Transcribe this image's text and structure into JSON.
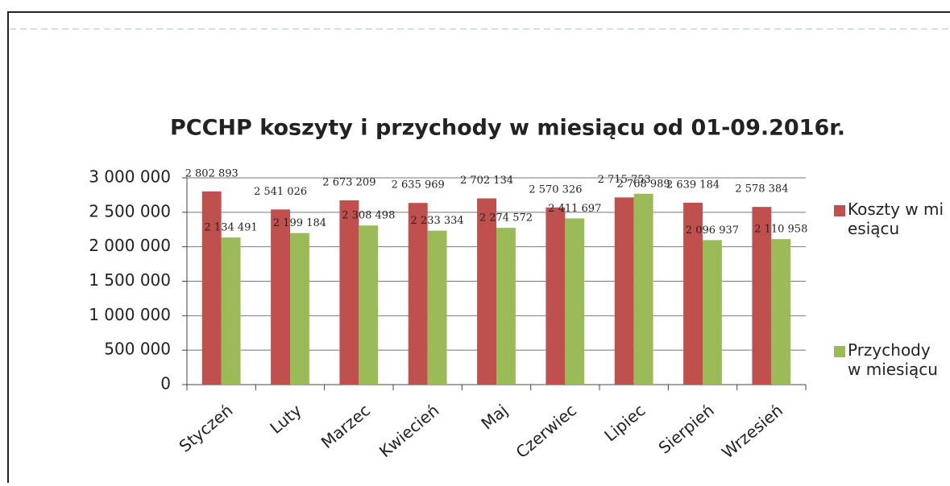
{
  "chart_data": {
    "type": "bar",
    "title": "PCCHP koszyty i przychody w miesiącu od 01-09.2016r.",
    "categories": [
      "Styczeń",
      "Luty",
      "Marzec",
      "Kwiecień",
      "Maj",
      "Czerwiec",
      "Lipiec",
      "Sierpień",
      "Wrzesień"
    ],
    "series": [
      {
        "name": "Koszty w miesiącu",
        "color": "#c0504d",
        "values": [
          2802893,
          2541026,
          2673209,
          2635969,
          2702134,
          2570326,
          2715753,
          2639184,
          2578384
        ],
        "value_labels": [
          "2 802 893",
          "2 541 026",
          "2 673 209",
          "2 635 969",
          "2 702 134",
          "2 570 326",
          "2 715 753",
          "2 639 184",
          "2 578 384"
        ]
      },
      {
        "name": "Przychody w miesiącu",
        "color": "#9bbb59",
        "values": [
          2134491,
          2199184,
          2308498,
          2233334,
          2274572,
          2411697,
          2768989,
          2096937,
          2110958
        ],
        "value_labels": [
          "2 134 491",
          "2 199 184",
          "2 308 498",
          "2 233 334",
          "2 274 572",
          "2 411 697",
          "2 768 989",
          "2 096 937",
          "2 110 958"
        ]
      }
    ],
    "ylim": [
      0,
      3000000
    ],
    "yticks": [
      0,
      {
        "value": 500000,
        "label": "500 000"
      },
      {
        "value": 1000000,
        "label": "1 000 000"
      },
      {
        "value": 1500000,
        "label": "1 500 000"
      },
      {
        "value": 2000000,
        "label": "2 000 000"
      },
      {
        "value": 2500000,
        "label": "2 500 000"
      },
      {
        "value": 3000000,
        "label": "3 000 000"
      }
    ],
    "grid": true,
    "legend": "right"
  }
}
